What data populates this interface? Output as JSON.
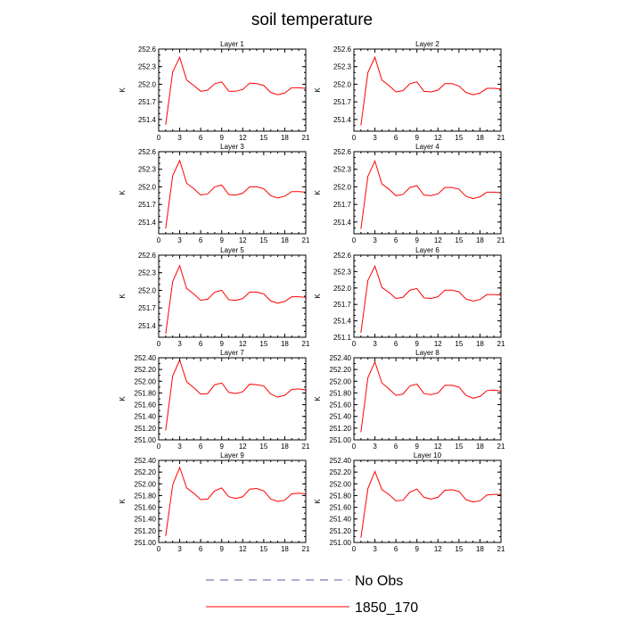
{
  "figure": {
    "title": "soil temperature"
  },
  "legend": {
    "items": [
      {
        "label": "No Obs",
        "color": "#5a5aa8",
        "style": "dashed"
      },
      {
        "label": "1850_170",
        "color": "#ff0000",
        "style": "solid"
      }
    ]
  },
  "chart_data": [
    {
      "type": "line",
      "title": "Layer 1",
      "ylabel": "K",
      "x": [
        1,
        2,
        3,
        4,
        5,
        6,
        7,
        8,
        9,
        10,
        11,
        12,
        13,
        14,
        15,
        16,
        17,
        18,
        19,
        20,
        21
      ],
      "xlim": [
        0,
        21
      ],
      "xticks": [
        0,
        3,
        6,
        9,
        12,
        15,
        18,
        21
      ],
      "ylim": [
        251.2,
        252.6
      ],
      "yticks": [
        251.4,
        251.7,
        252.0,
        252.3,
        252.6
      ],
      "ytick_decimals": 1,
      "series": [
        {
          "name": "1850_170",
          "color": "#ff0000",
          "values": [
            251.31,
            252.21,
            252.46,
            252.07,
            251.98,
            251.88,
            251.9,
            252.01,
            252.04,
            251.88,
            251.88,
            251.91,
            252.02,
            252.01,
            251.98,
            251.86,
            251.82,
            251.85,
            251.94,
            251.94,
            251.93
          ]
        }
      ]
    },
    {
      "type": "line",
      "title": "Layer 2",
      "ylabel": "K",
      "x": [
        1,
        2,
        3,
        4,
        5,
        6,
        7,
        8,
        9,
        10,
        11,
        12,
        13,
        14,
        15,
        16,
        17,
        18,
        19,
        20,
        21
      ],
      "xlim": [
        0,
        21
      ],
      "xticks": [
        0,
        3,
        6,
        9,
        12,
        15,
        18,
        21
      ],
      "ylim": [
        251.2,
        252.6
      ],
      "yticks": [
        251.4,
        251.7,
        252.0,
        252.3,
        252.6
      ],
      "ytick_decimals": 1,
      "series": [
        {
          "name": "1850_170",
          "color": "#ff0000",
          "values": [
            251.3,
            252.2,
            252.46,
            252.07,
            251.98,
            251.87,
            251.89,
            252.01,
            252.04,
            251.88,
            251.87,
            251.9,
            252.01,
            252.01,
            251.97,
            251.86,
            251.82,
            251.85,
            251.93,
            251.93,
            251.92
          ]
        }
      ]
    },
    {
      "type": "line",
      "title": "Layer 3",
      "ylabel": "K",
      "x": [
        1,
        2,
        3,
        4,
        5,
        6,
        7,
        8,
        9,
        10,
        11,
        12,
        13,
        14,
        15,
        16,
        17,
        18,
        19,
        20,
        21
      ],
      "xlim": [
        0,
        21
      ],
      "xticks": [
        0,
        3,
        6,
        9,
        12,
        15,
        18,
        21
      ],
      "ylim": [
        251.2,
        252.6
      ],
      "yticks": [
        251.4,
        251.7,
        252.0,
        252.3,
        252.6
      ],
      "ytick_decimals": 1,
      "series": [
        {
          "name": "1850_170",
          "color": "#ff0000",
          "values": [
            251.29,
            252.19,
            252.45,
            252.06,
            251.97,
            251.86,
            251.88,
            252.0,
            252.03,
            251.87,
            251.86,
            251.89,
            252.0,
            252.0,
            251.97,
            251.85,
            251.81,
            251.84,
            251.92,
            251.92,
            251.91
          ]
        }
      ]
    },
    {
      "type": "line",
      "title": "Layer 4",
      "ylabel": "K",
      "x": [
        1,
        2,
        3,
        4,
        5,
        6,
        7,
        8,
        9,
        10,
        11,
        12,
        13,
        14,
        15,
        16,
        17,
        18,
        19,
        20,
        21
      ],
      "xlim": [
        0,
        21
      ],
      "xticks": [
        0,
        3,
        6,
        9,
        12,
        15,
        18,
        21
      ],
      "ylim": [
        251.2,
        252.6
      ],
      "yticks": [
        251.4,
        251.7,
        252.0,
        252.3,
        252.6
      ],
      "ytick_decimals": 1,
      "series": [
        {
          "name": "1850_170",
          "color": "#ff0000",
          "values": [
            251.28,
            252.18,
            252.44,
            252.05,
            251.96,
            251.85,
            251.87,
            251.99,
            252.02,
            251.86,
            251.85,
            251.88,
            251.99,
            251.99,
            251.96,
            251.84,
            251.8,
            251.83,
            251.91,
            251.91,
            251.9
          ]
        }
      ]
    },
    {
      "type": "line",
      "title": "Layer 5",
      "ylabel": "K",
      "x": [
        1,
        2,
        3,
        4,
        5,
        6,
        7,
        8,
        9,
        10,
        11,
        12,
        13,
        14,
        15,
        16,
        17,
        18,
        19,
        20,
        21
      ],
      "xlim": [
        0,
        21
      ],
      "xticks": [
        0,
        3,
        6,
        9,
        12,
        15,
        18,
        21
      ],
      "ylim": [
        251.2,
        252.6
      ],
      "yticks": [
        251.4,
        251.7,
        252.0,
        252.3,
        252.6
      ],
      "ytick_decimals": 1,
      "series": [
        {
          "name": "1850_170",
          "color": "#ff0000",
          "values": [
            251.26,
            252.15,
            252.42,
            252.03,
            251.94,
            251.83,
            251.85,
            251.97,
            252.0,
            251.84,
            251.83,
            251.86,
            251.97,
            251.97,
            251.94,
            251.82,
            251.78,
            251.81,
            251.89,
            251.89,
            251.88
          ]
        }
      ]
    },
    {
      "type": "line",
      "title": "Layer 6",
      "ylabel": "K",
      "x": [
        1,
        2,
        3,
        4,
        5,
        6,
        7,
        8,
        9,
        10,
        11,
        12,
        13,
        14,
        15,
        16,
        17,
        18,
        19,
        20,
        21
      ],
      "xlim": [
        0,
        21
      ],
      "xticks": [
        0,
        3,
        6,
        9,
        12,
        15,
        18,
        21
      ],
      "ylim": [
        251.1,
        252.6
      ],
      "yticks": [
        251.1,
        251.4,
        251.7,
        252.0,
        252.3,
        252.6
      ],
      "ytick_decimals": 1,
      "series": [
        {
          "name": "1850_170",
          "color": "#ff0000",
          "values": [
            251.18,
            252.14,
            252.4,
            252.01,
            251.92,
            251.81,
            251.83,
            251.96,
            251.99,
            251.82,
            251.81,
            251.84,
            251.96,
            251.96,
            251.93,
            251.8,
            251.76,
            251.79,
            251.88,
            251.88,
            251.87
          ]
        }
      ]
    },
    {
      "type": "line",
      "title": "Layer 7",
      "ylabel": "K",
      "x": [
        1,
        2,
        3,
        4,
        5,
        6,
        7,
        8,
        9,
        10,
        11,
        12,
        13,
        14,
        15,
        16,
        17,
        18,
        19,
        20,
        21
      ],
      "xlim": [
        0,
        21
      ],
      "xticks": [
        0,
        3,
        6,
        9,
        12,
        15,
        18,
        21
      ],
      "ylim": [
        251.0,
        252.4
      ],
      "yticks": [
        251.0,
        251.2,
        251.4,
        251.6,
        251.8,
        252.0,
        252.2,
        252.4
      ],
      "ytick_decimals": 2,
      "series": [
        {
          "name": "1850_170",
          "color": "#ff0000",
          "values": [
            251.16,
            252.09,
            252.36,
            251.99,
            251.89,
            251.78,
            251.79,
            251.94,
            251.97,
            251.81,
            251.79,
            251.82,
            251.95,
            251.94,
            251.92,
            251.78,
            251.73,
            251.76,
            251.86,
            251.87,
            251.85
          ]
        }
      ]
    },
    {
      "type": "line",
      "title": "Layer 8",
      "ylabel": "K",
      "x": [
        1,
        2,
        3,
        4,
        5,
        6,
        7,
        8,
        9,
        10,
        11,
        12,
        13,
        14,
        15,
        16,
        17,
        18,
        19,
        20,
        21
      ],
      "xlim": [
        0,
        21
      ],
      "xticks": [
        0,
        3,
        6,
        9,
        12,
        15,
        18,
        21
      ],
      "ylim": [
        251.0,
        252.4
      ],
      "yticks": [
        251.0,
        251.2,
        251.4,
        251.6,
        251.8,
        252.0,
        252.2,
        252.4
      ],
      "ytick_decimals": 2,
      "series": [
        {
          "name": "1850_170",
          "color": "#ff0000",
          "values": [
            251.13,
            252.06,
            252.33,
            251.97,
            251.87,
            251.76,
            251.78,
            251.92,
            251.95,
            251.79,
            251.77,
            251.8,
            251.93,
            251.93,
            251.9,
            251.76,
            251.71,
            251.74,
            251.84,
            251.85,
            251.83
          ]
        }
      ]
    },
    {
      "type": "line",
      "title": "Layer 9",
      "ylabel": "K",
      "x": [
        1,
        2,
        3,
        4,
        5,
        6,
        7,
        8,
        9,
        10,
        11,
        12,
        13,
        14,
        15,
        16,
        17,
        18,
        19,
        20,
        21
      ],
      "xlim": [
        0,
        21
      ],
      "xticks": [
        0,
        3,
        6,
        9,
        12,
        15,
        18,
        21
      ],
      "ylim": [
        251.0,
        252.4
      ],
      "yticks": [
        251.0,
        251.2,
        251.4,
        251.6,
        251.8,
        252.0,
        252.2,
        252.4
      ],
      "ytick_decimals": 2,
      "series": [
        {
          "name": "1850_170",
          "color": "#ff0000",
          "values": [
            251.11,
            251.98,
            252.28,
            251.93,
            251.84,
            251.73,
            251.74,
            251.88,
            251.93,
            251.78,
            251.75,
            251.78,
            251.91,
            251.92,
            251.88,
            251.74,
            251.7,
            251.72,
            251.83,
            251.84,
            251.83
          ]
        }
      ]
    },
    {
      "type": "line",
      "title": "Layer 10",
      "ylabel": "K",
      "x": [
        1,
        2,
        3,
        4,
        5,
        6,
        7,
        8,
        9,
        10,
        11,
        12,
        13,
        14,
        15,
        16,
        17,
        18,
        19,
        20,
        21
      ],
      "xlim": [
        0,
        21
      ],
      "xticks": [
        0,
        3,
        6,
        9,
        12,
        15,
        18,
        21
      ],
      "ylim": [
        251.0,
        252.4
      ],
      "yticks": [
        251.0,
        251.2,
        251.4,
        251.6,
        251.8,
        252.0,
        252.2,
        252.4
      ],
      "ytick_decimals": 2,
      "series": [
        {
          "name": "1850_170",
          "color": "#ff0000",
          "values": [
            251.08,
            251.92,
            252.21,
            251.9,
            251.82,
            251.71,
            251.72,
            251.86,
            251.91,
            251.77,
            251.74,
            251.77,
            251.89,
            251.9,
            251.87,
            251.73,
            251.69,
            251.71,
            251.81,
            251.82,
            251.82
          ]
        }
      ]
    }
  ]
}
